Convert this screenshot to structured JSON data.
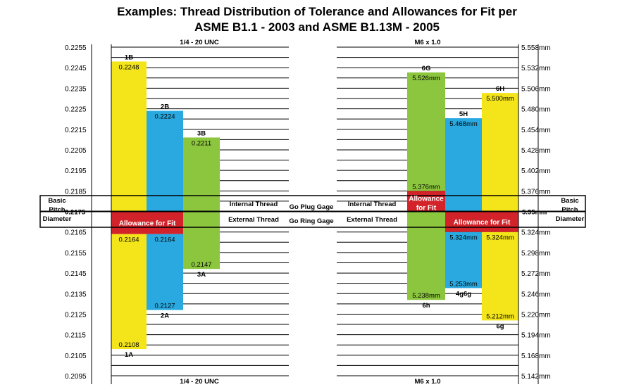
{
  "title_line1": "Examples: Thread Distribution of Tolerance and Allowances for Fit per",
  "title_line2": "ASME B1.1 - 2003 and ASME B1.13M - 2005",
  "chart_data": {
    "type": "bar",
    "colors": {
      "yellow": "#f3e51a",
      "blue": "#2aa9e0",
      "green": "#8cc63e",
      "red": "#d2232a"
    },
    "left": {
      "header_top": "1/4 - 20 UNC",
      "header_bottom": "1/4 - 20 UNC",
      "ticks": [
        "0.2255",
        "0.2245",
        "0.2235",
        "0.2225",
        "0.2215",
        "0.2205",
        "0.2195",
        "0.2185",
        "0.2175",
        "0.2165",
        "0.2155",
        "0.2145",
        "0.2135",
        "0.2125",
        "0.2115",
        "0.2105",
        "0.2095"
      ],
      "ylim": [
        0.2095,
        0.2255
      ],
      "basic": 0.2175,
      "internal_bars": [
        {
          "name": "1B",
          "top": 0.2248,
          "bottom": 0.2175,
          "color": "yellow",
          "top_label": "0.2248"
        },
        {
          "name": "2B",
          "top": 0.2224,
          "bottom": 0.2175,
          "color": "blue",
          "top_label": "0.2224"
        },
        {
          "name": "3B",
          "top": 0.2211,
          "bottom": 0.2175,
          "color": "green",
          "top_label": "0.2211"
        }
      ],
      "external_bars": [
        {
          "name": "1A",
          "top": 0.2164,
          "bottom": 0.2108,
          "color": "yellow",
          "top_label": "0.2164",
          "bottom_label": "0.2108"
        },
        {
          "name": "2A",
          "top": 0.2164,
          "bottom": 0.2127,
          "color": "blue",
          "top_label": "0.2164",
          "bottom_label": "0.2127"
        },
        {
          "name": "3A",
          "top": 0.2175,
          "bottom": 0.2147,
          "color": "green",
          "bottom_label": "0.2147"
        }
      ],
      "allowance": {
        "label": "Allowance for Fit",
        "top": 0.2175,
        "bottom": 0.2164
      }
    },
    "right": {
      "header_top": "M6 x 1.0",
      "header_bottom": "M6 x 1.0",
      "ticks": [
        "5.558mm",
        "5.532mm",
        "5.506mm",
        "5.480mm",
        "5.454mm",
        "5.428mm",
        "5.402mm",
        "5.376mm",
        "5.35mm",
        "5.324mm",
        "5.298mm",
        "5.272mm",
        "5.246mm",
        "5.220mm",
        "5.194mm",
        "5.168mm",
        "5.142mm"
      ],
      "ylim": [
        5.142,
        5.558
      ],
      "basic": 5.35,
      "internal_bars": [
        {
          "name": "6G",
          "top": 5.526,
          "bottom": 5.376,
          "color": "green",
          "top_label": "5.526mm",
          "bottom_label": "5.376mm"
        },
        {
          "name": "5H",
          "top": 5.468,
          "bottom": 5.35,
          "color": "blue",
          "top_label": "5.468mm"
        },
        {
          "name": "6H",
          "top": 5.5,
          "bottom": 5.35,
          "color": "yellow",
          "top_label": "5.500mm"
        }
      ],
      "external_bars": [
        {
          "name": "6h",
          "top": 5.35,
          "bottom": 5.238,
          "color": "green",
          "bottom_label": "5.238mm"
        },
        {
          "name": "4g6g",
          "top": 5.324,
          "bottom": 5.253,
          "color": "blue",
          "top_label": "5.324mm",
          "bottom_label": "5.253mm"
        },
        {
          "name": "6g",
          "top": 5.324,
          "bottom": 5.212,
          "color": "yellow",
          "top_label": "5.324mm",
          "bottom_label": "5.212mm"
        }
      ],
      "allowances": [
        {
          "label": "Allowance for Fit",
          "bar": "6G",
          "top": 5.376,
          "bottom": 5.35
        },
        {
          "label": "Allowance for Fit",
          "bar": "4g6g",
          "top": 5.35,
          "bottom": 5.324
        }
      ]
    },
    "center": {
      "internal_thread": "Internal Thread",
      "external_thread": "External Thread",
      "go_plug": "Go Plug Gage",
      "go_ring": "Go Ring Gage"
    },
    "basic_pitch_left": "Basic Pitch Diameter",
    "basic_pitch_right": "Basic Pitch Diameter"
  }
}
